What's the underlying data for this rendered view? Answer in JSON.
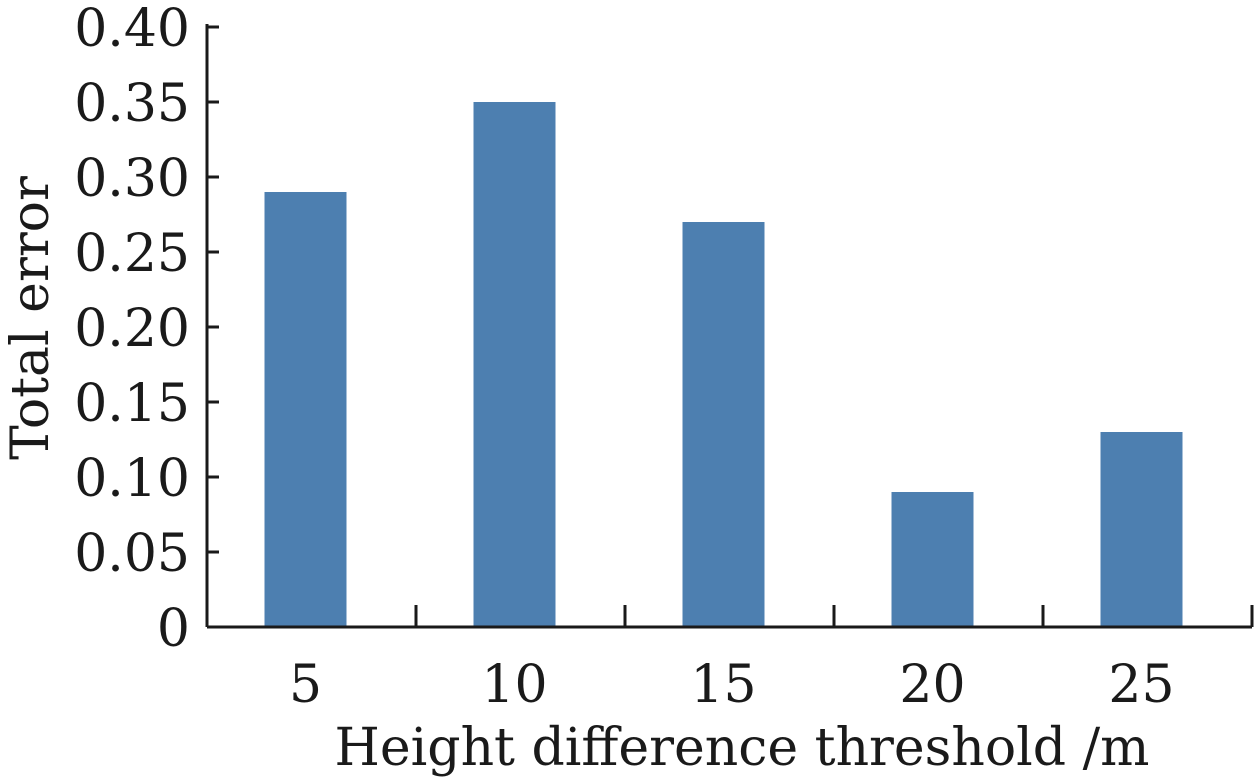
{
  "chart_data": {
    "type": "bar",
    "categories": [
      "5",
      "10",
      "15",
      "20",
      "25"
    ],
    "values": [
      0.29,
      0.35,
      0.27,
      0.09,
      0.13
    ],
    "xlabel": "Height difference threshold /m",
    "ylabel": "Total error",
    "ylim": [
      0,
      0.4
    ],
    "yticks": [
      "0",
      "0.05",
      "0.10",
      "0.15",
      "0.20",
      "0.25",
      "0.30",
      "0.35",
      "0.40"
    ],
    "grid": false,
    "bar_color": "#4d7fb0",
    "axis_color": "#1a1a1a"
  }
}
